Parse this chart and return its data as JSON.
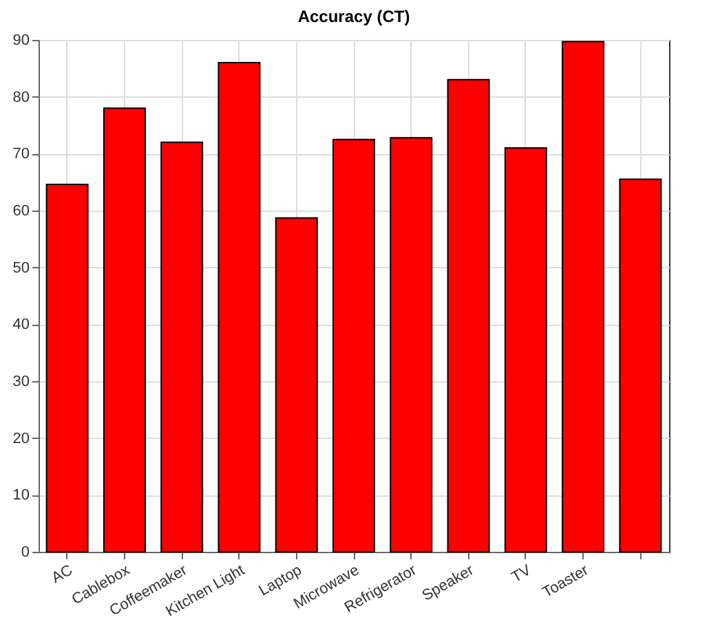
{
  "chart_data": {
    "type": "bar",
    "title": "Accuracy (CT)",
    "categories": [
      "AC",
      "Cablebox",
      "Coffeemaker",
      "Kitchen Light",
      "Laptop",
      "Microwave",
      "Refrigerator",
      "Speaker",
      "TV",
      "Toaster",
      null
    ],
    "values": [
      64.6,
      78,
      72,
      86,
      58.7,
      72.5,
      72.8,
      83,
      71,
      89.7,
      65.5
    ],
    "color": "#ff0000",
    "ylim": [
      0,
      90
    ],
    "yticks": [
      0,
      10,
      20,
      30,
      40,
      50,
      60,
      70,
      80,
      90
    ],
    "grid": true
  }
}
